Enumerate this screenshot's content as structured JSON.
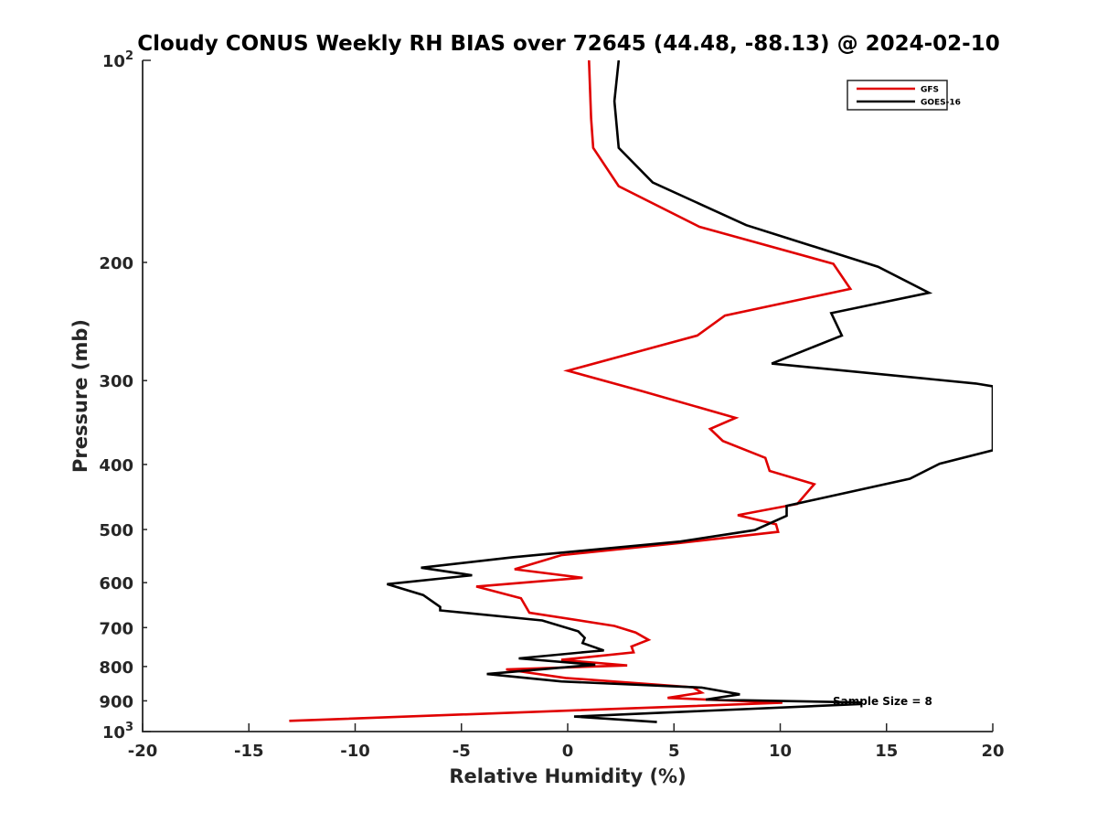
{
  "chart_data": {
    "type": "line",
    "title": "Cloudy CONUS Weekly RH BIAS over 72645 (44.48, -88.13) @ 2024-02-10",
    "xlabel": "Relative Humidity (%)",
    "ylabel": "Pressure (mb)",
    "xlim": [
      -20,
      20
    ],
    "ylim": [
      100,
      1000
    ],
    "y_scale": "log",
    "y_reversed": true,
    "x_ticks": [
      "-20",
      "-15",
      "-10",
      "-5",
      "0",
      "5",
      "10",
      "15",
      "20"
    ],
    "y_ticks": [
      {
        "value": 100,
        "base": "10",
        "exp": "2"
      },
      {
        "value": 200,
        "label": "200"
      },
      {
        "value": 300,
        "label": "300"
      },
      {
        "value": 400,
        "label": "400"
      },
      {
        "value": 500,
        "label": "500"
      },
      {
        "value": 600,
        "label": "600"
      },
      {
        "value": 700,
        "label": "700"
      },
      {
        "value": 800,
        "label": "800"
      },
      {
        "value": 900,
        "label": "900"
      },
      {
        "value": 1000,
        "base": "10",
        "exp": "3"
      }
    ],
    "grid": false,
    "legend": {
      "position": "top-right"
    },
    "annotation": "Sample Size = 8",
    "series": [
      {
        "name": "GFS",
        "color": "#e00000",
        "points": [
          [
            1.0,
            100
          ],
          [
            1.1,
            122
          ],
          [
            1.2,
            135
          ],
          [
            2.4,
            154
          ],
          [
            6.2,
            177
          ],
          [
            12.5,
            201
          ],
          [
            13.3,
            219
          ],
          [
            7.4,
            240
          ],
          [
            6.1,
            257
          ],
          [
            0.0,
            290
          ],
          [
            3.5,
            311
          ],
          [
            7.9,
            341
          ],
          [
            6.7,
            354
          ],
          [
            7.3,
            369
          ],
          [
            9.3,
            391
          ],
          [
            9.5,
            409
          ],
          [
            11.6,
            428
          ],
          [
            10.8,
            458
          ],
          [
            8.0,
            476
          ],
          [
            9.8,
            491
          ],
          [
            9.9,
            504
          ],
          [
            5.2,
            524
          ],
          [
            -0.3,
            546
          ],
          [
            -2.5,
            573
          ],
          [
            0.7,
            590
          ],
          [
            -4.3,
            608
          ],
          [
            -2.2,
            633
          ],
          [
            -1.8,
            665
          ],
          [
            2.2,
            696
          ],
          [
            3.2,
            712
          ],
          [
            3.8,
            730
          ],
          [
            3.0,
            747
          ],
          [
            3.1,
            762
          ],
          [
            -0.3,
            782
          ],
          [
            2.8,
            797
          ],
          [
            -2.9,
            808
          ],
          [
            -0.1,
            832
          ],
          [
            5.9,
            859
          ],
          [
            6.3,
            875
          ],
          [
            4.7,
            891
          ],
          [
            10.1,
            906
          ],
          [
            -13.1,
            964
          ]
        ]
      },
      {
        "name": "GOES-16",
        "color": "#000000",
        "points": [
          [
            2.4,
            100
          ],
          [
            2.2,
            115
          ],
          [
            2.4,
            135
          ],
          [
            4.0,
            152
          ],
          [
            8.4,
            176
          ],
          [
            14.6,
            203
          ],
          [
            17.0,
            222
          ],
          [
            12.4,
            238
          ],
          [
            12.9,
            257
          ],
          [
            9.6,
            283
          ],
          [
            19.2,
            303
          ],
          [
            20.0,
            306
          ],
          [
            20.0,
            381
          ],
          [
            17.5,
            399
          ],
          [
            16.1,
            420
          ],
          [
            10.3,
            461
          ],
          [
            10.3,
            477
          ],
          [
            8.8,
            501
          ],
          [
            5.3,
            521
          ],
          [
            -2.6,
            550
          ],
          [
            -6.9,
            570
          ],
          [
            -4.5,
            585
          ],
          [
            -8.5,
            603
          ],
          [
            -6.8,
            626
          ],
          [
            -6.0,
            652
          ],
          [
            -6.0,
            660
          ],
          [
            -1.2,
            683
          ],
          [
            0.5,
            709
          ],
          [
            0.8,
            725
          ],
          [
            0.7,
            738
          ],
          [
            1.7,
            757
          ],
          [
            1.1,
            760
          ],
          [
            -2.3,
            778
          ],
          [
            1.3,
            795
          ],
          [
            -3.8,
            821
          ],
          [
            -0.3,
            842
          ],
          [
            6.3,
            860
          ],
          [
            8.1,
            880
          ],
          [
            6.5,
            896
          ],
          [
            13.8,
            905
          ],
          [
            13.8,
            910
          ],
          [
            0.3,
            950
          ],
          [
            4.2,
            968
          ]
        ]
      }
    ]
  }
}
